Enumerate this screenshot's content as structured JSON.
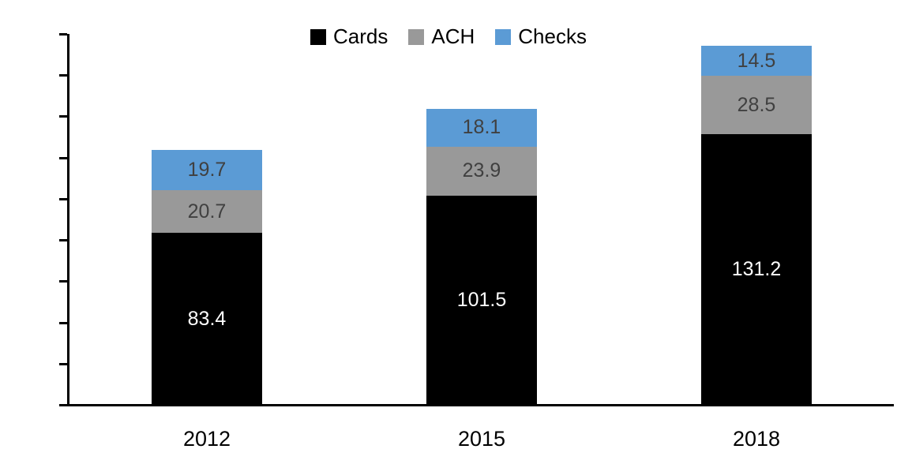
{
  "chart_data": {
    "type": "bar",
    "stacked": true,
    "title": "",
    "xlabel": "",
    "ylabel": "",
    "categories": [
      "2012",
      "2015",
      "2018"
    ],
    "series": [
      {
        "name": "Cards",
        "color": "#000000",
        "label_color": "#ffffff",
        "values": [
          83.4,
          101.5,
          131.2
        ],
        "labels": [
          "83.4",
          "101.5",
          "131.2"
        ]
      },
      {
        "name": "ACH",
        "color": "#999999",
        "label_color": "#404040",
        "values": [
          20.7,
          23.9,
          28.5
        ],
        "labels": [
          "20.7",
          "23.9",
          "28.5"
        ]
      },
      {
        "name": "Checks",
        "color": "#5b9bd5",
        "label_color": "#404040",
        "values": [
          19.7,
          18.1,
          14.5
        ],
        "labels": [
          "19.7",
          "18.1",
          "14.5"
        ]
      }
    ],
    "y_axis": {
      "min": 0,
      "max": 180,
      "step": 20,
      "ticks": [
        "0",
        "20",
        "40",
        "60",
        "80",
        "100",
        "120",
        "140",
        "160",
        "180"
      ]
    },
    "legend": {
      "position": "top",
      "entries": [
        "Cards",
        "ACH",
        "Checks"
      ]
    },
    "grid": false,
    "axis_color": "#000000",
    "tick_label_color": "#000000"
  }
}
